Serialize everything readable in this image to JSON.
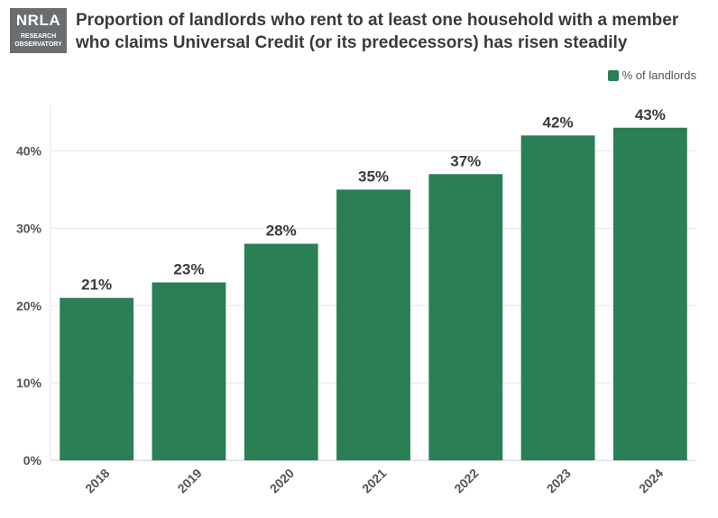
{
  "logo": {
    "word": "NRLA",
    "line1": "RESEARCH",
    "line2": "OBSERVATORY"
  },
  "header": {
    "title_line1": "Proportion of landlords who rent to at least one household with a member",
    "title_line2": "who claims Universal Credit (or its predecessors) has risen steadily"
  },
  "legend": {
    "label": "% of landlords",
    "color": "#2a7f55"
  },
  "chart_data": {
    "type": "bar",
    "title": "Proportion of landlords who rent to at least one household with a member who claims Universal Credit (or its predecessors) has risen steadily",
    "xlabel": "",
    "ylabel": "",
    "categories": [
      "2018",
      "2019",
      "2020",
      "2021",
      "2022",
      "2023",
      "2024"
    ],
    "series": [
      {
        "name": "% of landlords",
        "values": [
          21,
          23,
          28,
          35,
          37,
          42,
          43
        ],
        "color": "#2a7f55"
      }
    ],
    "data_labels": [
      "21%",
      "23%",
      "28%",
      "35%",
      "37%",
      "42%",
      "43%"
    ],
    "yticks": [
      0,
      10,
      20,
      30,
      40
    ],
    "ytick_labels": [
      "0%",
      "10%",
      "20%",
      "30%",
      "40%"
    ],
    "ylim": [
      0,
      46
    ],
    "grid": true,
    "legend_position": "top-right"
  }
}
